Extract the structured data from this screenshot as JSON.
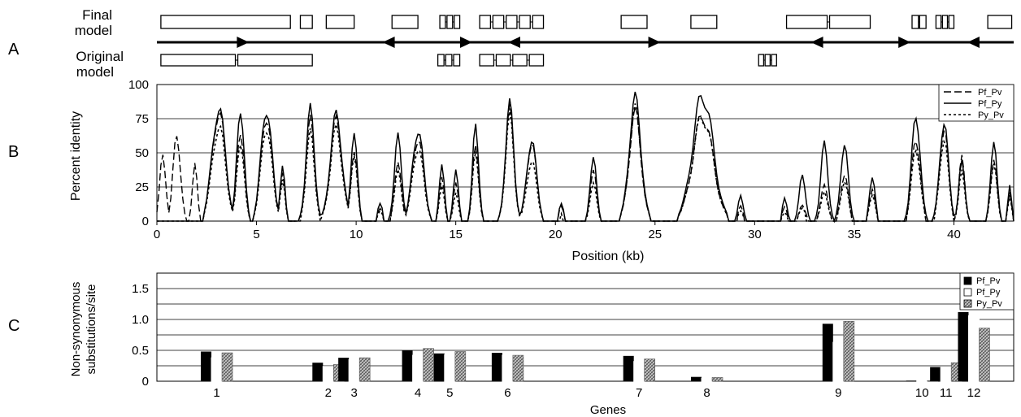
{
  "panel_letters": {
    "a": "A",
    "b": "B",
    "c": "C"
  },
  "panel_a": {
    "final_label": [
      "Final",
      "model"
    ],
    "original_label": [
      "Original",
      "model"
    ],
    "axis_kb": [
      0,
      43
    ],
    "final_genes": [
      {
        "s": 0.2,
        "e": 6.7,
        "exons": 1
      },
      {
        "s": 7.2,
        "e": 7.8,
        "exons": 1
      },
      {
        "s": 8.5,
        "e": 9.9,
        "exons": 1
      },
      {
        "s": 11.8,
        "e": 13.1,
        "exons": 1
      },
      {
        "s": 14.2,
        "e": 15.2,
        "exons": 3
      },
      {
        "s": 16.2,
        "e": 19.4,
        "exons": 5
      },
      {
        "s": 23.3,
        "e": 24.6,
        "exons": 1
      },
      {
        "s": 26.8,
        "e": 28.1,
        "exons": 1
      },
      {
        "s": 31.6,
        "e": 35.8,
        "exons": 2
      },
      {
        "s": 37.9,
        "e": 38.6,
        "exons": 2
      },
      {
        "s": 39.1,
        "e": 40.0,
        "exons": 3
      },
      {
        "s": 41.7,
        "e": 42.9,
        "exons": 1
      }
    ],
    "original_genes": [
      {
        "s": 0.2,
        "e": 7.8,
        "exons": 2
      },
      {
        "s": 14.1,
        "e": 15.2,
        "exons": 3
      },
      {
        "s": 16.2,
        "e": 19.4,
        "exons": 4
      },
      {
        "s": 30.2,
        "e": 31.1,
        "exons": 3
      }
    ],
    "strand_segments": [
      {
        "s": 0,
        "e": 8.6,
        "dir": "right"
      },
      {
        "s": 8.6,
        "e": 14.7,
        "dir": "left"
      },
      {
        "s": 14.7,
        "e": 16.3,
        "dir": "right"
      },
      {
        "s": 16.3,
        "e": 19.6,
        "dir": "left"
      },
      {
        "s": 19.6,
        "e": 30.3,
        "dir": "right"
      },
      {
        "s": 30.3,
        "e": 36.0,
        "dir": "left"
      },
      {
        "s": 36.0,
        "e": 39.0,
        "dir": "right"
      },
      {
        "s": 39.0,
        "e": 43.0,
        "dir": "left"
      }
    ]
  },
  "chart_data": [
    {
      "type": "line",
      "panel": "B",
      "ylabel": "Percent identity",
      "xlabel": "Position (kb)",
      "xlim": [
        0,
        43
      ],
      "ylim": [
        0,
        100
      ],
      "yticks": [
        0,
        25,
        50,
        75,
        100
      ],
      "xticks": [
        0,
        5,
        10,
        15,
        20,
        25,
        30,
        35,
        40
      ],
      "grid": true,
      "legend_position": "top-right",
      "legend": [
        "Pf_Pv",
        "Pf_Py",
        "Py_Pv"
      ],
      "peaks": [
        {
          "x": 0.3,
          "w": 0.25,
          "pf_pv": 48,
          "pf_py": 0,
          "py_pv": 0
        },
        {
          "x": 1.0,
          "w": 0.3,
          "pf_pv": 65,
          "pf_py": 0,
          "py_pv": 0
        },
        {
          "x": 1.9,
          "w": 0.2,
          "pf_pv": 42,
          "pf_py": 0,
          "py_pv": 0
        },
        {
          "x": 3.1,
          "w": 0.55,
          "pf_pv": 80,
          "pf_py": 83,
          "py_pv": 70
        },
        {
          "x": 4.2,
          "w": 0.3,
          "pf_pv": 68,
          "pf_py": 85,
          "py_pv": 60
        },
        {
          "x": 5.5,
          "w": 0.45,
          "pf_pv": 78,
          "pf_py": 84,
          "py_pv": 70
        },
        {
          "x": 6.3,
          "w": 0.2,
          "pf_pv": 35,
          "pf_py": 40,
          "py_pv": 30
        },
        {
          "x": 7.7,
          "w": 0.35,
          "pf_pv": 72,
          "pf_py": 80,
          "py_pv": 63
        },
        {
          "x": 9.0,
          "w": 0.5,
          "pf_pv": 72,
          "pf_py": 76,
          "py_pv": 66
        },
        {
          "x": 9.9,
          "w": 0.25,
          "pf_pv": 55,
          "pf_py": 70,
          "py_pv": 52
        },
        {
          "x": 11.2,
          "w": 0.2,
          "pf_pv": 10,
          "pf_py": 14,
          "py_pv": 8
        },
        {
          "x": 12.1,
          "w": 0.3,
          "pf_pv": 40,
          "pf_py": 60,
          "py_pv": 35
        },
        {
          "x": 13.1,
          "w": 0.45,
          "pf_pv": 62,
          "pf_py": 68,
          "py_pv": 55
        },
        {
          "x": 14.3,
          "w": 0.2,
          "pf_pv": 35,
          "pf_py": 45,
          "py_pv": 28
        },
        {
          "x": 15.0,
          "w": 0.2,
          "pf_pv": 30,
          "pf_py": 40,
          "py_pv": 22
        },
        {
          "x": 16.0,
          "w": 0.25,
          "pf_pv": 55,
          "pf_py": 70,
          "py_pv": 50
        },
        {
          "x": 17.7,
          "w": 0.35,
          "pf_pv": 80,
          "pf_py": 84,
          "py_pv": 75
        },
        {
          "x": 18.8,
          "w": 0.4,
          "pf_pv": 58,
          "pf_py": 60,
          "py_pv": 45
        },
        {
          "x": 20.3,
          "w": 0.2,
          "pf_pv": 10,
          "pf_py": 12,
          "py_pv": 5
        },
        {
          "x": 21.9,
          "w": 0.25,
          "pf_pv": 40,
          "pf_py": 50,
          "py_pv": 30
        },
        {
          "x": 24.0,
          "w": 0.5,
          "pf_pv": 78,
          "pf_py": 88,
          "py_pv": 80
        },
        {
          "x": 27.4,
          "w": 0.85,
          "pf_pv": 77,
          "pf_py": 92,
          "py_pv": 76
        },
        {
          "x": 29.3,
          "w": 0.2,
          "pf_pv": 12,
          "pf_py": 20,
          "py_pv": 8
        },
        {
          "x": 31.5,
          "w": 0.2,
          "pf_pv": 10,
          "pf_py": 16,
          "py_pv": 6
        },
        {
          "x": 32.4,
          "w": 0.25,
          "pf_pv": 12,
          "pf_py": 35,
          "py_pv": 10
        },
        {
          "x": 33.5,
          "w": 0.3,
          "pf_pv": 25,
          "pf_py": 55,
          "py_pv": 20
        },
        {
          "x": 34.5,
          "w": 0.3,
          "pf_pv": 35,
          "pf_py": 58,
          "py_pv": 30
        },
        {
          "x": 35.9,
          "w": 0.25,
          "pf_pv": 22,
          "pf_py": 30,
          "py_pv": 18
        },
        {
          "x": 38.1,
          "w": 0.35,
          "pf_pv": 62,
          "pf_py": 80,
          "py_pv": 55
        },
        {
          "x": 39.5,
          "w": 0.35,
          "pf_pv": 70,
          "pf_py": 75,
          "py_pv": 62
        },
        {
          "x": 40.4,
          "w": 0.25,
          "pf_pv": 45,
          "pf_py": 42,
          "py_pv": 35
        },
        {
          "x": 42.0,
          "w": 0.25,
          "pf_pv": 48,
          "pf_py": 62,
          "py_pv": 45
        },
        {
          "x": 42.8,
          "w": 0.15,
          "pf_pv": 20,
          "pf_py": 25,
          "py_pv": 18
        }
      ]
    },
    {
      "type": "bar",
      "panel": "C",
      "ylabel": [
        "Non-synonymous",
        "substitutions/site"
      ],
      "xlabel": "Genes",
      "ylim": [
        0,
        1.75
      ],
      "yticks": [
        0,
        0.5,
        1.0,
        1.5
      ],
      "yticklabels": [
        "0",
        "0.5",
        "1.0",
        "1.5"
      ],
      "grid": true,
      "legend_position": "top-right",
      "categories": [
        "1",
        "2",
        "3",
        "4",
        "5",
        "6",
        "7",
        "8",
        "9",
        "10",
        "11",
        "12"
      ],
      "category_kb": [
        3.0,
        8.6,
        9.9,
        13.1,
        14.7,
        17.6,
        24.2,
        27.6,
        34.2,
        38.4,
        39.6,
        41.0
      ],
      "series": [
        {
          "name": "Pf_Pv",
          "color": "#000000",
          "values": [
            0.48,
            0.3,
            0.38,
            0.5,
            0.45,
            0.46,
            0.41,
            0.07,
            0.93,
            0.01,
            0.23,
            1.12
          ]
        },
        {
          "name": "Pf_Py",
          "color": "#ffffff",
          "values": [
            0.38,
            0.24,
            0.35,
            0.42,
            0.43,
            0.42,
            0.32,
            0.05,
            0.63,
            0.01,
            0.22,
            1.06
          ]
        },
        {
          "name": "Py_Pv",
          "color": "#a0a0a0",
          "values": [
            0.46,
            0.27,
            0.38,
            0.53,
            0.48,
            0.42,
            0.36,
            0.06,
            0.97,
            0.01,
            0.3,
            0.86
          ]
        }
      ]
    }
  ]
}
